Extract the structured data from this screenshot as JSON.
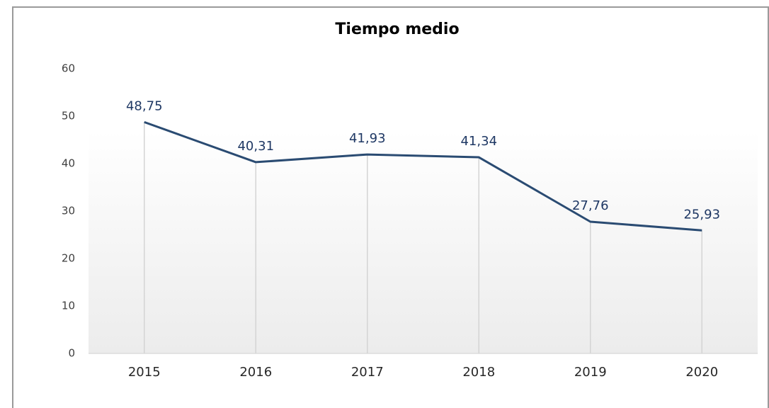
{
  "chart_data": {
    "type": "line",
    "title": "Tiempo medio",
    "categories": [
      "2015",
      "2016",
      "2017",
      "2018",
      "2019",
      "2020"
    ],
    "values": [
      48.75,
      40.31,
      41.93,
      41.34,
      27.76,
      25.93
    ],
    "value_labels": [
      "48,75",
      "40,31",
      "41,93",
      "41,34",
      "27,76",
      "25,93"
    ],
    "color": "#2a4b72",
    "ylim": [
      0,
      60
    ],
    "yticks": [
      0,
      10,
      20,
      30,
      40,
      50,
      60
    ]
  }
}
